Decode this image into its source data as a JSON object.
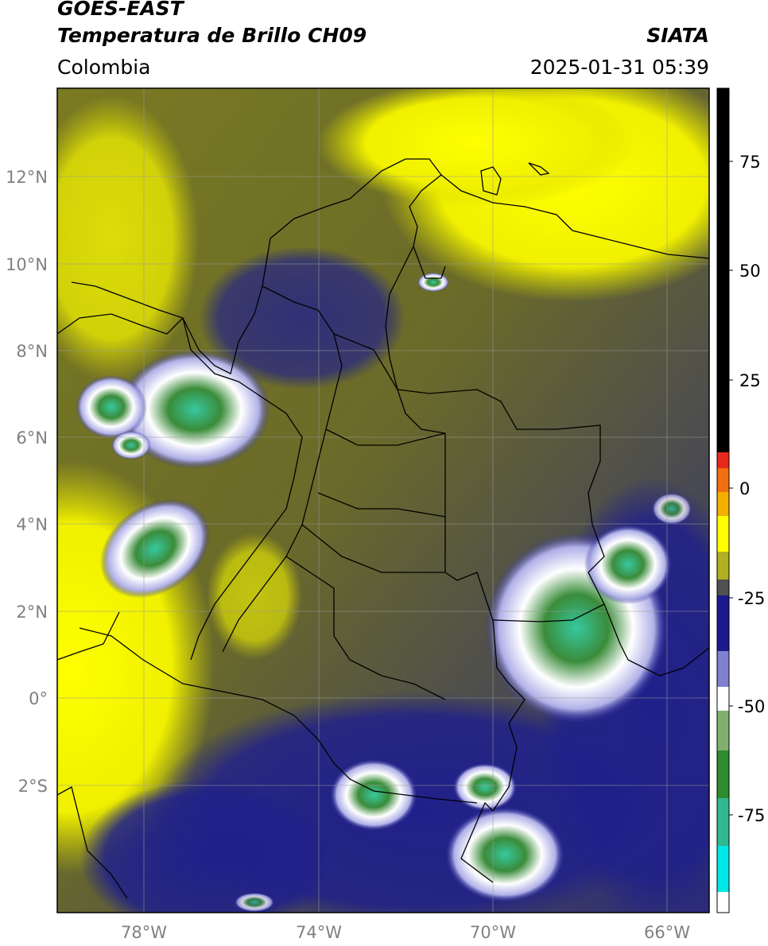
{
  "header": {
    "title_line1": "GOES-EAST",
    "title_line2": "Temperatura de Brillo CH09",
    "region": "Colombia",
    "source": "SIATA",
    "datetime": "2025-01-31 05:39"
  },
  "map": {
    "lat_labels": [
      "12°N",
      "10°N",
      "8°N",
      "6°N",
      "4°N",
      "2°N",
      "0°",
      "2°S"
    ],
    "lon_labels": [
      "78°W",
      "74°W",
      "70°W",
      "66°W"
    ]
  },
  "colorbar": {
    "labels": [
      "75",
      "50",
      "25",
      "0",
      "-25",
      "-50",
      "-75"
    ],
    "colors": {
      "black": "#000000",
      "red": "#e8281a",
      "orange": "#f2a000",
      "yellow": "#ffff00",
      "olive": "#80801a",
      "gray": "#404040",
      "navy": "#1a1a8c",
      "lavender": "#b8b8e8",
      "white": "#ffffff",
      "green": "#2e8b2e",
      "teal": "#30c8a0",
      "cyan": "#00e8e8"
    }
  }
}
